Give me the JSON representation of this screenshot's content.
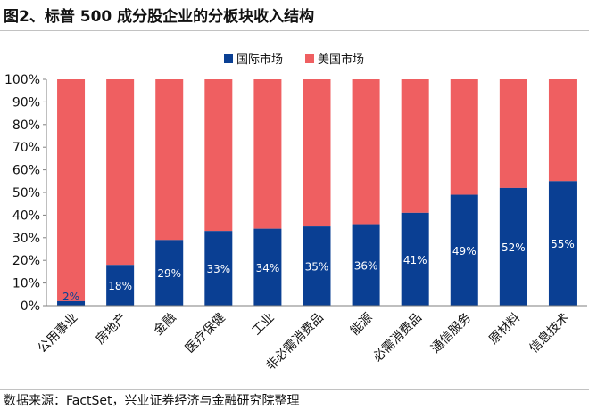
{
  "header": {
    "title": "图2、标普 500 成分股企业的分板块收入结构"
  },
  "footer": {
    "source": "数据来源：FactSet，兴业证券经济与金融研究院整理"
  },
  "colors": {
    "international": "#0a3f93",
    "us": "#ef5f61",
    "axis": "#7f7f7f"
  },
  "chart_data": {
    "type": "bar",
    "stacked": true,
    "normalized": true,
    "categories": [
      "公用事业",
      "房地产",
      "金融",
      "医疗保健",
      "工业",
      "非必需消费品",
      "能源",
      "必需消费品",
      "通信服务",
      "原材料",
      "信息技术"
    ],
    "series": [
      {
        "name": "国际市场",
        "values": [
          2,
          18,
          29,
          33,
          34,
          35,
          36,
          41,
          49,
          52,
          55
        ],
        "labels": [
          "2%",
          "18%",
          "29%",
          "33%",
          "34%",
          "35%",
          "36%",
          "41%",
          "49%",
          "52%",
          "55%"
        ]
      },
      {
        "name": "美国市场",
        "values": [
          98,
          82,
          71,
          67,
          66,
          65,
          64,
          59,
          51,
          48,
          45
        ]
      }
    ],
    "yticks": [
      "0%",
      "10%",
      "20%",
      "30%",
      "40%",
      "50%",
      "60%",
      "70%",
      "80%",
      "90%",
      "100%"
    ],
    "ylim": [
      0,
      100
    ],
    "legend_position": "top-center",
    "grid": false
  }
}
